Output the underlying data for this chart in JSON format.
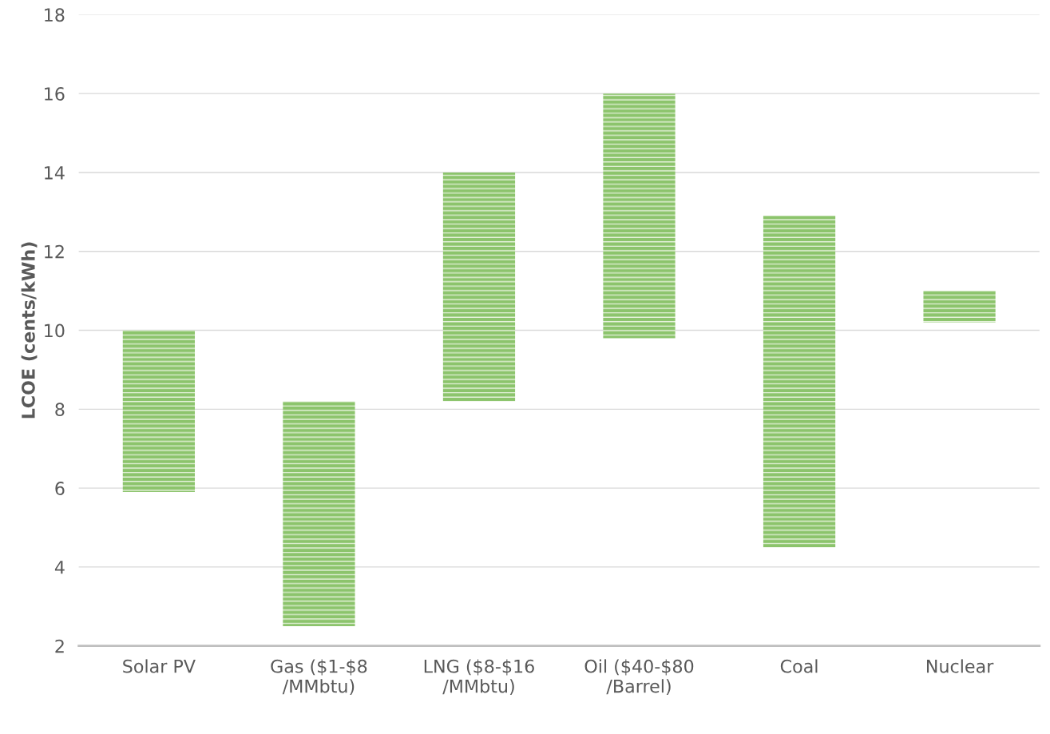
{
  "chart_data": {
    "type": "bar",
    "ylabel": "LCOE (cents/kWh)",
    "categories": [
      "Solar PV",
      "Gas ($1-$8\n/MMbtu)",
      "LNG ($8-$16\n/MMbtu)",
      "Oil ($40-$80\n/Barrel)",
      "Coal",
      "Nuclear"
    ],
    "base": [
      5.9,
      2.5,
      8.2,
      9.8,
      4.5,
      10.2
    ],
    "values": [
      4.1,
      5.7,
      5.8,
      6.2,
      8.4,
      0.8
    ],
    "color": "#8cc46c",
    "ylim": [
      2,
      18
    ],
    "yticks": [
      2,
      4,
      6,
      8,
      10,
      12,
      14,
      16,
      18
    ],
    "grid": "y"
  }
}
